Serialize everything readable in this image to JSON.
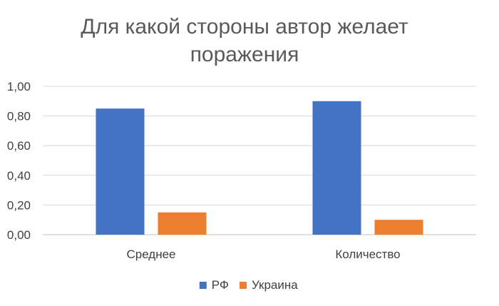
{
  "chart_data": {
    "type": "bar",
    "title_lines": [
      "Для какой стороны автор желает",
      "поражения"
    ],
    "title": "Для какой стороны автор желает поражения",
    "categories": [
      "Среднее",
      "Количество"
    ],
    "series": [
      {
        "name": "РФ",
        "values": [
          0.85,
          0.9
        ],
        "color": "#4472C4"
      },
      {
        "name": "Украина",
        "values": [
          0.15,
          0.1
        ],
        "color": "#ED7D31"
      }
    ],
    "ylim": [
      0,
      1
    ],
    "y_ticks": [
      0,
      0.2,
      0.4,
      0.6,
      0.8,
      1.0
    ],
    "y_tick_labels": [
      "0,00",
      "0,20",
      "0,40",
      "0,60",
      "0,80",
      "1,00"
    ],
    "grid": true,
    "legend_position": "bottom",
    "xlabel": "",
    "ylabel": ""
  }
}
